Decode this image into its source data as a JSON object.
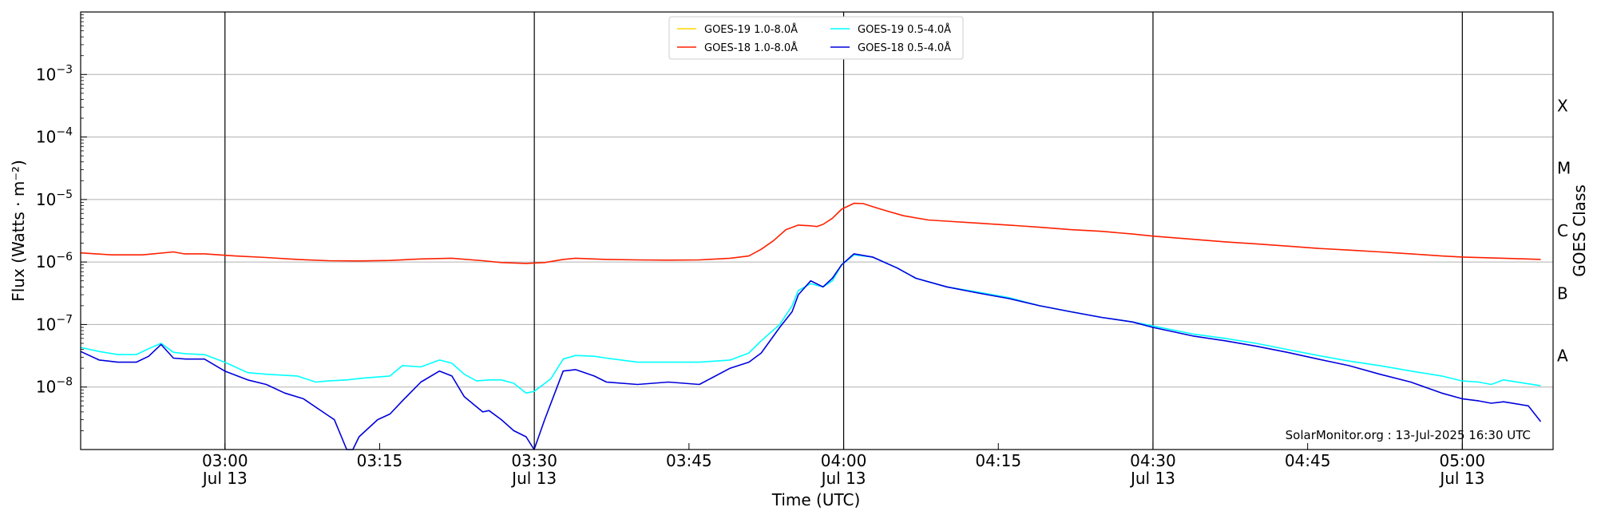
{
  "chart_data": {
    "type": "line",
    "ylabel": "Flux (Watts · m⁻²)",
    "xlabel": "Time (UTC)",
    "right_label": "GOES Class",
    "credit": "SolarMonitor.org : 13-Jul-2025 16:30 UTC",
    "yscale": "log",
    "ylim": [
      1e-09,
      0.01
    ],
    "xlim": [
      0,
      2.38
    ],
    "x_unit": "hours after 02:46 UTC, 13-Jul-2025",
    "grid": "horizontal at decades",
    "legend_position": "top-center",
    "y_ticks": [
      {
        "exp": "-8",
        "value": 1e-08
      },
      {
        "exp": "-7",
        "value": 1e-07
      },
      {
        "exp": "-6",
        "value": 1e-06
      },
      {
        "exp": "-5",
        "value": 1e-05
      },
      {
        "exp": "-4",
        "value": 0.0001
      },
      {
        "exp": "-3",
        "value": 0.001
      }
    ],
    "x_ticks": [
      {
        "t": 0.2333,
        "time": "03:00",
        "date": "Jul 13",
        "major": true
      },
      {
        "t": 0.4833,
        "time": "03:15",
        "date": "",
        "major": false
      },
      {
        "t": 0.7333,
        "time": "03:30",
        "date": "Jul 13",
        "major": true
      },
      {
        "t": 0.9833,
        "time": "03:45",
        "date": "",
        "major": false
      },
      {
        "t": 1.2333,
        "time": "04:00",
        "date": "Jul 13",
        "major": true
      },
      {
        "t": 1.4833,
        "time": "04:15",
        "date": "",
        "major": false
      },
      {
        "t": 1.7333,
        "time": "04:30",
        "date": "Jul 13",
        "major": true
      },
      {
        "t": 1.9833,
        "time": "04:45",
        "date": "",
        "major": false
      },
      {
        "t": 2.2333,
        "time": "05:00",
        "date": "Jul 13",
        "major": true
      }
    ],
    "goes_classes": [
      {
        "label": "A",
        "value": 3.16e-08
      },
      {
        "label": "B",
        "value": 3.16e-07
      },
      {
        "label": "C",
        "value": 3.16e-06
      },
      {
        "label": "M",
        "value": 3.16e-05
      },
      {
        "label": "X",
        "value": 0.000316
      }
    ],
    "series": [
      {
        "name": "GOES-19 1.0-8.0Å",
        "color": "#FFD700",
        "x": [],
        "y": []
      },
      {
        "name": "GOES-18 1.0-8.0Å",
        "color": "#FF2000",
        "x": [
          0.0,
          0.05,
          0.1,
          0.15,
          0.167,
          0.2,
          0.25,
          0.3,
          0.35,
          0.4,
          0.45,
          0.5,
          0.55,
          0.6,
          0.65,
          0.68,
          0.72,
          0.75,
          0.78,
          0.8,
          0.85,
          0.9,
          0.95,
          1.0,
          1.05,
          1.08,
          1.1,
          1.12,
          1.14,
          1.16,
          1.18,
          1.19,
          1.2,
          1.215,
          1.23,
          1.25,
          1.265,
          1.28,
          1.3,
          1.33,
          1.37,
          1.4,
          1.45,
          1.5,
          1.55,
          1.6,
          1.65,
          1.7,
          1.733,
          1.8,
          1.85,
          1.9,
          1.95,
          2.0,
          2.05,
          2.1,
          2.15,
          2.2,
          2.233,
          2.3,
          2.36
        ],
        "y": [
          1.4e-06,
          1.3e-06,
          1.3e-06,
          1.45e-06,
          1.35e-06,
          1.35e-06,
          1.25e-06,
          1.18e-06,
          1.1e-06,
          1.05e-06,
          1.04e-06,
          1.06e-06,
          1.12e-06,
          1.15e-06,
          1.05e-06,
          9.8e-07,
          9.5e-07,
          9.8e-07,
          1.1e-06,
          1.15e-06,
          1.1e-06,
          1.08e-06,
          1.07e-06,
          1.08e-06,
          1.15e-06,
          1.25e-06,
          1.6e-06,
          2.2e-06,
          3.3e-06,
          3.9e-06,
          3.8e-06,
          3.7e-06,
          4e-06,
          5e-06,
          7e-06,
          8.7e-06,
          8.6e-06,
          7.7e-06,
          6.7e-06,
          5.5e-06,
          4.7e-06,
          4.5e-06,
          4.2e-06,
          3.9e-06,
          3.6e-06,
          3.3e-06,
          3.1e-06,
          2.8e-06,
          2.6e-06,
          2.3e-06,
          2.1e-06,
          1.95e-06,
          1.8e-06,
          1.65e-06,
          1.55e-06,
          1.45e-06,
          1.35e-06,
          1.25e-06,
          1.2e-06,
          1.15e-06,
          1.1e-06
        ]
      },
      {
        "name": "GOES-19 0.5-4.0Å",
        "color": "#00FFFF",
        "x": [
          0.0,
          0.03,
          0.06,
          0.09,
          0.11,
          0.13,
          0.15,
          0.17,
          0.2,
          0.233,
          0.27,
          0.3,
          0.35,
          0.38,
          0.4,
          0.43,
          0.46,
          0.5,
          0.52,
          0.55,
          0.58,
          0.6,
          0.62,
          0.64,
          0.66,
          0.68,
          0.7,
          0.72,
          0.733,
          0.76,
          0.78,
          0.8,
          0.83,
          0.85,
          0.9,
          0.95,
          1.0,
          1.05,
          1.08,
          1.1,
          1.13,
          1.15,
          1.16,
          1.18,
          1.2,
          1.215,
          1.23,
          1.25,
          1.28,
          1.32,
          1.35,
          1.4,
          1.45,
          1.5,
          1.55,
          1.6,
          1.65,
          1.7,
          1.733,
          1.8,
          1.85,
          1.9,
          1.95,
          2.0,
          2.05,
          2.1,
          2.15,
          2.2,
          2.233,
          2.26,
          2.28,
          2.3,
          2.36
        ],
        "y": [
          4.3e-08,
          3.7e-08,
          3.3e-08,
          3.3e-08,
          4.1e-08,
          5e-08,
          3.6e-08,
          3.4e-08,
          3.3e-08,
          2.5e-08,
          1.7e-08,
          1.6e-08,
          1.5e-08,
          1.2e-08,
          1.25e-08,
          1.3e-08,
          1.4e-08,
          1.5e-08,
          2.2e-08,
          2.1e-08,
          2.7e-08,
          2.4e-08,
          1.6e-08,
          1.25e-08,
          1.3e-08,
          1.3e-08,
          1.15e-08,
          8e-09,
          8.5e-09,
          1.35e-08,
          2.8e-08,
          3.2e-08,
          3.1e-08,
          2.9e-08,
          2.5e-08,
          2.5e-08,
          2.5e-08,
          2.7e-08,
          3.5e-08,
          5.5e-08,
          1e-07,
          2e-07,
          3.5e-07,
          4.5e-07,
          4e-07,
          5e-07,
          9e-07,
          1.3e-06,
          1.2e-06,
          8e-07,
          5.5e-07,
          4e-07,
          3.3e-07,
          2.7e-07,
          2e-07,
          1.6e-07,
          1.3e-07,
          1.1e-07,
          9.5e-08,
          7e-08,
          6e-08,
          5e-08,
          4e-08,
          3.2e-08,
          2.6e-08,
          2.2e-08,
          1.8e-08,
          1.5e-08,
          1.25e-08,
          1.2e-08,
          1.1e-08,
          1.3e-08,
          1.05e-08
        ]
      },
      {
        "name": "GOES-18 0.5-4.0Å",
        "color": "#0000DD",
        "x": [
          0.0,
          0.03,
          0.06,
          0.09,
          0.11,
          0.13,
          0.15,
          0.17,
          0.2,
          0.233,
          0.27,
          0.3,
          0.33,
          0.36,
          0.4,
          0.41,
          0.43,
          0.44,
          0.45,
          0.48,
          0.5,
          0.52,
          0.55,
          0.58,
          0.6,
          0.62,
          0.65,
          0.66,
          0.68,
          0.7,
          0.72,
          0.733,
          0.75,
          0.78,
          0.8,
          0.83,
          0.85,
          0.9,
          0.95,
          1.0,
          1.05,
          1.08,
          1.1,
          1.13,
          1.15,
          1.16,
          1.18,
          1.2,
          1.215,
          1.23,
          1.25,
          1.28,
          1.32,
          1.35,
          1.4,
          1.45,
          1.5,
          1.55,
          1.6,
          1.65,
          1.7,
          1.733,
          1.8,
          1.85,
          1.9,
          1.95,
          2.0,
          2.05,
          2.1,
          2.15,
          2.2,
          2.233,
          2.26,
          2.28,
          2.3,
          2.34,
          2.36
        ],
        "y": [
          3.7e-08,
          2.7e-08,
          2.5e-08,
          2.5e-08,
          3.1e-08,
          4.8e-08,
          2.9e-08,
          2.8e-08,
          2.8e-08,
          1.8e-08,
          1.3e-08,
          1.1e-08,
          8e-09,
          6.5e-09,
          3.5e-09,
          3e-09,
          1e-09,
          1e-09,
          1.6e-09,
          3e-09,
          3.7e-09,
          6e-09,
          1.2e-08,
          1.8e-08,
          1.5e-08,
          7e-09,
          4e-09,
          4.2e-09,
          3e-09,
          2e-09,
          1.6e-09,
          1e-09,
          3e-09,
          1.8e-08,
          1.9e-08,
          1.5e-08,
          1.2e-08,
          1.1e-08,
          1.2e-08,
          1.1e-08,
          2e-08,
          2.5e-08,
          3.5e-08,
          9e-08,
          1.6e-07,
          3e-07,
          5e-07,
          4e-07,
          5.5e-07,
          9e-07,
          1.35e-06,
          1.2e-06,
          8e-07,
          5.5e-07,
          4e-07,
          3.2e-07,
          2.6e-07,
          2e-07,
          1.6e-07,
          1.3e-07,
          1.1e-07,
          9e-08,
          6.5e-08,
          5.5e-08,
          4.5e-08,
          3.6e-08,
          2.8e-08,
          2.2e-08,
          1.6e-08,
          1.2e-08,
          8e-09,
          6.5e-09,
          6e-09,
          5.5e-09,
          5.8e-09,
          5e-09,
          2.8e-09
        ]
      }
    ]
  }
}
